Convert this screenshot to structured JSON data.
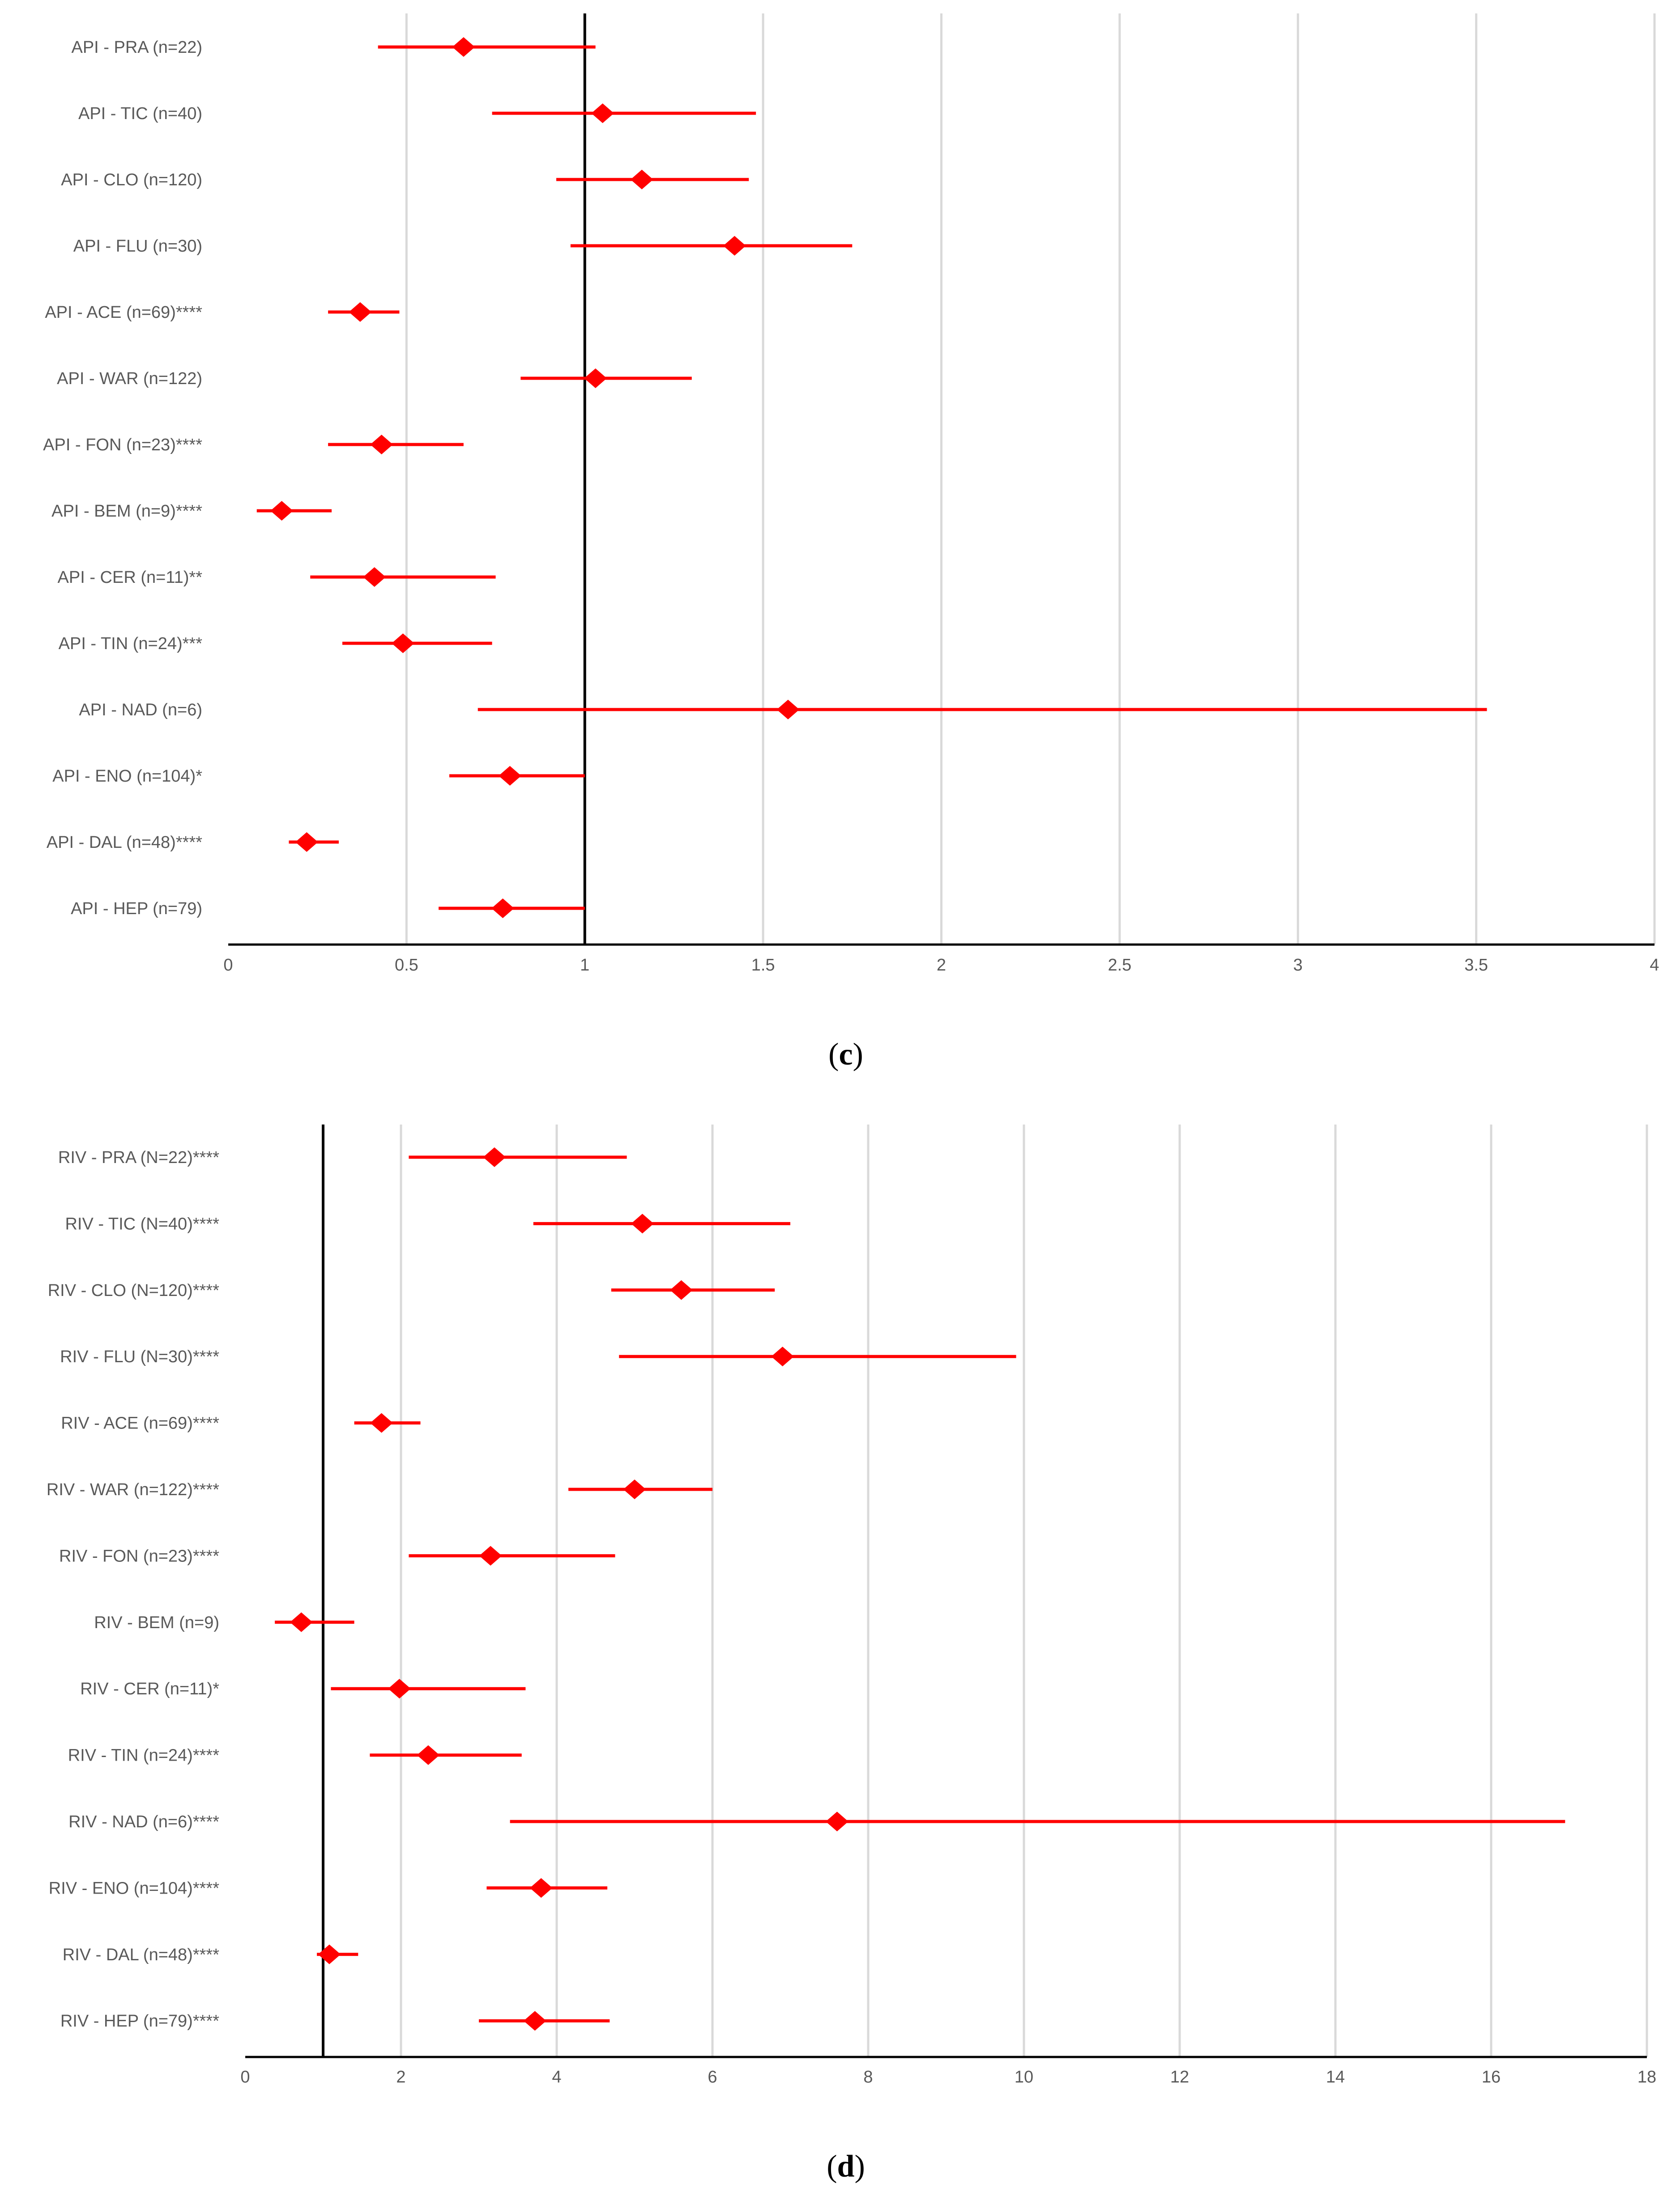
{
  "chart_data": [
    {
      "type": "forest",
      "caption": "c",
      "reference_line": 1,
      "xlim": [
        0,
        4
      ],
      "xticks": [
        "0",
        "0.5",
        "1",
        "1.5",
        "2",
        "2.5",
        "3",
        "3.5",
        "4"
      ],
      "xtick_values": [
        0,
        0.5,
        1,
        1.5,
        2,
        2.5,
        3,
        3.5,
        4
      ],
      "marker_color": "#ff0000",
      "rows": [
        {
          "label": "API - PRA (n=22)",
          "estimate": 0.66,
          "lower": 0.42,
          "upper": 1.03
        },
        {
          "label": "API - TIC (n=40)",
          "estimate": 1.05,
          "lower": 0.74,
          "upper": 1.48
        },
        {
          "label": "API - CLO (n=120)",
          "estimate": 1.16,
          "lower": 0.92,
          "upper": 1.46
        },
        {
          "label": "API - FLU (n=30)",
          "estimate": 1.42,
          "lower": 0.96,
          "upper": 1.75
        },
        {
          "label": "API - ACE (n=69)****",
          "estimate": 0.37,
          "lower": 0.28,
          "upper": 0.48
        },
        {
          "label": "API - WAR (n=122)",
          "estimate": 1.03,
          "lower": 0.82,
          "upper": 1.3
        },
        {
          "label": "API - FON (n=23)****",
          "estimate": 0.43,
          "lower": 0.28,
          "upper": 0.66
        },
        {
          "label": "API - BEM (n=9)****",
          "estimate": 0.15,
          "lower": 0.08,
          "upper": 0.29
        },
        {
          "label": "API - CER (n=11)**",
          "estimate": 0.41,
          "lower": 0.23,
          "upper": 0.75
        },
        {
          "label": "API - TIN (n=24)***",
          "estimate": 0.49,
          "lower": 0.32,
          "upper": 0.74
        },
        {
          "label": "API - NAD (n=6)",
          "estimate": 1.57,
          "lower": 0.7,
          "upper": 3.53
        },
        {
          "label": "API - ENO (n=104)*",
          "estimate": 0.79,
          "lower": 0.62,
          "upper": 1.0
        },
        {
          "label": "API - DAL (n=48)****",
          "estimate": 0.22,
          "lower": 0.17,
          "upper": 0.31
        },
        {
          "label": "API - HEP (n=79)",
          "estimate": 0.77,
          "lower": 0.59,
          "upper": 1.0
        }
      ]
    },
    {
      "type": "forest",
      "caption": "d",
      "reference_line": 1,
      "xlim": [
        0,
        18
      ],
      "xticks": [
        "0",
        "2",
        "4",
        "6",
        "8",
        "10",
        "12",
        "14",
        "16",
        "18"
      ],
      "xtick_values": [
        0,
        2,
        4,
        6,
        8,
        10,
        12,
        14,
        16,
        18
      ],
      "marker_color": "#ff0000",
      "rows": [
        {
          "label": "RIV - PRA (N=22)****",
          "estimate": 3.2,
          "lower": 2.1,
          "upper": 4.9
        },
        {
          "label": "RIV - TIC (N=40)****",
          "estimate": 5.1,
          "lower": 3.7,
          "upper": 7.0
        },
        {
          "label": "RIV - CLO (N=120)****",
          "estimate": 5.6,
          "lower": 4.7,
          "upper": 6.8
        },
        {
          "label": "RIV - FLU (N=30)****",
          "estimate": 6.9,
          "lower": 4.8,
          "upper": 9.9
        },
        {
          "label": "RIV - ACE (n=69)****",
          "estimate": 1.75,
          "lower": 1.4,
          "upper": 2.25
        },
        {
          "label": "RIV - WAR (n=122)****",
          "estimate": 5.0,
          "lower": 4.15,
          "upper": 6.0
        },
        {
          "label": "RIV - FON (n=23)****",
          "estimate": 3.15,
          "lower": 2.1,
          "upper": 4.75
        },
        {
          "label": "RIV - BEM (n=9)",
          "estimate": 0.72,
          "lower": 0.38,
          "upper": 1.4
        },
        {
          "label": "RIV - CER (n=11)*",
          "estimate": 1.98,
          "lower": 1.1,
          "upper": 3.6
        },
        {
          "label": "RIV - TIN (n=24)****",
          "estimate": 2.35,
          "lower": 1.6,
          "upper": 3.55
        },
        {
          "label": "RIV - NAD (n=6)****",
          "estimate": 7.6,
          "lower": 3.4,
          "upper": 16.95
        },
        {
          "label": "RIV - ENO (n=104)****",
          "estimate": 3.8,
          "lower": 3.1,
          "upper": 4.65
        },
        {
          "label": "RIV - DAL (n=48)****",
          "estimate": 1.08,
          "lower": 0.92,
          "upper": 1.45
        },
        {
          "label": "RIV -  HEP (n=79)****",
          "estimate": 3.72,
          "lower": 3.0,
          "upper": 4.68
        }
      ]
    }
  ]
}
